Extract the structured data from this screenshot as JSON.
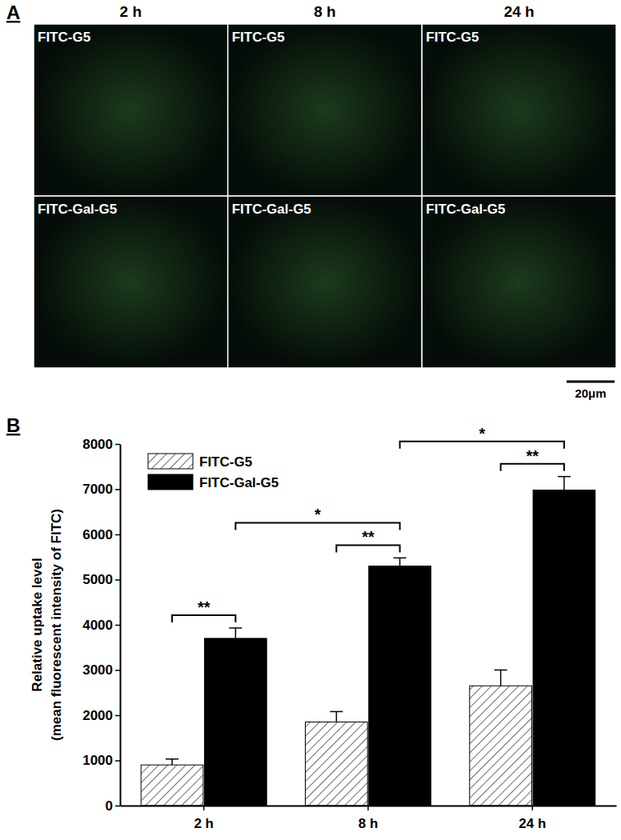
{
  "panel_a": {
    "label": "A",
    "columns": [
      "2 h",
      "8 h",
      "24 h"
    ],
    "rows": [
      "FITC-G5",
      "FITC-Gal-G5"
    ],
    "scale_bar": "20μm"
  },
  "panel_b": {
    "label": "B"
  },
  "chart_data": {
    "type": "bar",
    "y_label": [
      "Relative uptake level",
      "(mean fluorescent intensity of FITC)"
    ],
    "categories": [
      "2 h",
      "8 h",
      "24 h"
    ],
    "series": [
      {
        "name": "FITC-G5",
        "color": "#444444",
        "marker": "hatch",
        "values": [
          900,
          1850,
          2650
        ],
        "errors": [
          130,
          230,
          350
        ]
      },
      {
        "name": "FITC-Gal-G5",
        "color": "#000000",
        "marker": "solid",
        "values": [
          3700,
          5300,
          6980
        ],
        "errors": [
          230,
          180,
          300
        ]
      }
    ],
    "ylim": [
      0,
      8000
    ],
    "yticks": [
      0,
      1000,
      2000,
      3000,
      4000,
      5000,
      6000,
      7000,
      8000
    ],
    "legend": "upper left",
    "annotations": [
      {
        "text": "**",
        "categories": [
          "2 h"
        ]
      },
      {
        "text": "**",
        "categories": [
          "8 h"
        ]
      },
      {
        "text": "**",
        "categories": [
          "24 h"
        ]
      },
      {
        "text": "*",
        "categories": [
          "2 h",
          "8 h"
        ]
      },
      {
        "text": "*",
        "categories": [
          "8 h",
          "24 h"
        ]
      }
    ]
  }
}
